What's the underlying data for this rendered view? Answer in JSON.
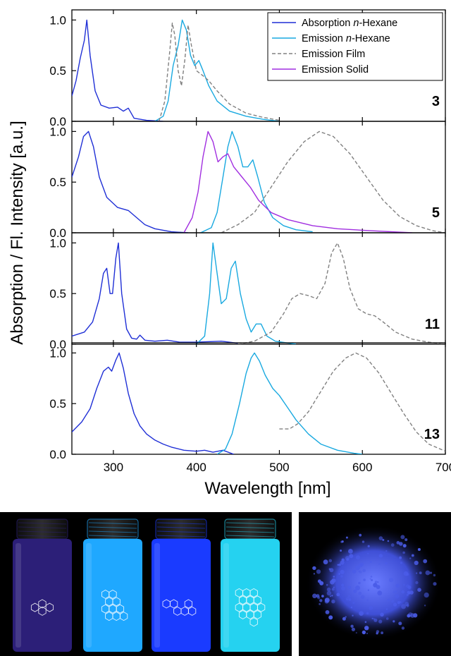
{
  "chart_data": {
    "type": "line",
    "xlabel": "Wavelength [nm]",
    "ylabel": "Absorption / Fl. Intensity [a.u.]",
    "xlim": [
      250,
      700
    ],
    "ylim": [
      0,
      1.1
    ],
    "x_ticks": [
      300,
      400,
      500,
      600,
      700
    ],
    "y_ticks": [
      0.0,
      0.5,
      1.0
    ],
    "y_tick_labels": [
      "0.0",
      "0.5",
      "1.0"
    ],
    "grid": false,
    "legend": {
      "placement": "top-right",
      "entries": [
        {
          "label_pre": "Absorption ",
          "label_ital": "n",
          "label_post": "-Hexane",
          "series": "abs"
        },
        {
          "label_pre": "Emission ",
          "label_ital": "n",
          "label_post": "-Hexane",
          "series": "em_hex"
        },
        {
          "label_pre": "Emission Film",
          "label_ital": "",
          "label_post": "",
          "series": "em_film"
        },
        {
          "label_pre": "Emission Solid",
          "label_ital": "",
          "label_post": "",
          "series": "em_solid"
        }
      ]
    },
    "series_styles": {
      "abs": {
        "color": "#1f2fd6",
        "dash": ""
      },
      "em_hex": {
        "color": "#19a9e0",
        "dash": ""
      },
      "em_film": {
        "color": "#808080",
        "dash": "5,3"
      },
      "em_solid": {
        "color": "#a12ee0",
        "dash": ""
      }
    },
    "panels": [
      {
        "label": "3",
        "series": {
          "abs": [
            [
              250,
              0.25
            ],
            [
              255,
              0.4
            ],
            [
              260,
              0.62
            ],
            [
              265,
              0.8
            ],
            [
              268,
              1.0
            ],
            [
              272,
              0.65
            ],
            [
              278,
              0.3
            ],
            [
              285,
              0.16
            ],
            [
              295,
              0.13
            ],
            [
              305,
              0.14
            ],
            [
              312,
              0.1
            ],
            [
              318,
              0.13
            ],
            [
              325,
              0.03
            ],
            [
              340,
              0.01
            ],
            [
              360,
              0.0
            ]
          ],
          "em_hex": [
            [
              350,
              0.0
            ],
            [
              360,
              0.05
            ],
            [
              366,
              0.2
            ],
            [
              372,
              0.55
            ],
            [
              378,
              0.75
            ],
            [
              383,
              1.0
            ],
            [
              388,
              0.9
            ],
            [
              393,
              0.65
            ],
            [
              398,
              0.55
            ],
            [
              403,
              0.6
            ],
            [
              408,
              0.5
            ],
            [
              415,
              0.35
            ],
            [
              425,
              0.2
            ],
            [
              440,
              0.1
            ],
            [
              460,
              0.05
            ],
            [
              480,
              0.02
            ],
            [
              500,
              0.0
            ]
          ],
          "em_film": [
            [
              355,
              0.0
            ],
            [
              362,
              0.2
            ],
            [
              368,
              0.7
            ],
            [
              371,
              0.97
            ],
            [
              374,
              0.85
            ],
            [
              378,
              0.5
            ],
            [
              382,
              0.35
            ],
            [
              386,
              0.6
            ],
            [
              390,
              0.95
            ],
            [
              394,
              0.75
            ],
            [
              400,
              0.5
            ],
            [
              408,
              0.45
            ],
            [
              415,
              0.4
            ],
            [
              425,
              0.3
            ],
            [
              440,
              0.17
            ],
            [
              460,
              0.08
            ],
            [
              480,
              0.04
            ],
            [
              500,
              0.01
            ]
          ]
        }
      },
      {
        "label": "5",
        "series": {
          "abs": [
            [
              250,
              0.55
            ],
            [
              258,
              0.75
            ],
            [
              264,
              0.95
            ],
            [
              270,
              1.0
            ],
            [
              276,
              0.85
            ],
            [
              283,
              0.55
            ],
            [
              292,
              0.35
            ],
            [
              305,
              0.25
            ],
            [
              318,
              0.22
            ],
            [
              328,
              0.15
            ],
            [
              338,
              0.08
            ],
            [
              350,
              0.04
            ],
            [
              370,
              0.01
            ],
            [
              390,
              0.0
            ]
          ],
          "em_hex": [
            [
              405,
              0.0
            ],
            [
              418,
              0.05
            ],
            [
              425,
              0.2
            ],
            [
              432,
              0.55
            ],
            [
              438,
              0.85
            ],
            [
              443,
              1.0
            ],
            [
              450,
              0.85
            ],
            [
              456,
              0.65
            ],
            [
              462,
              0.65
            ],
            [
              468,
              0.72
            ],
            [
              474,
              0.55
            ],
            [
              482,
              0.3
            ],
            [
              492,
              0.15
            ],
            [
              505,
              0.07
            ],
            [
              520,
              0.03
            ],
            [
              540,
              0.01
            ]
          ],
          "em_film": [
            [
              430,
              0.0
            ],
            [
              450,
              0.08
            ],
            [
              470,
              0.2
            ],
            [
              490,
              0.45
            ],
            [
              510,
              0.7
            ],
            [
              530,
              0.9
            ],
            [
              548,
              1.0
            ],
            [
              565,
              0.95
            ],
            [
              585,
              0.78
            ],
            [
              605,
              0.55
            ],
            [
              625,
              0.32
            ],
            [
              645,
              0.16
            ],
            [
              665,
              0.07
            ],
            [
              685,
              0.02
            ],
            [
              700,
              0.0
            ]
          ],
          "em_solid": [
            [
              385,
              0.0
            ],
            [
              395,
              0.15
            ],
            [
              402,
              0.4
            ],
            [
              408,
              0.75
            ],
            [
              414,
              1.0
            ],
            [
              420,
              0.9
            ],
            [
              426,
              0.7
            ],
            [
              432,
              0.75
            ],
            [
              438,
              0.78
            ],
            [
              445,
              0.65
            ],
            [
              455,
              0.55
            ],
            [
              465,
              0.45
            ],
            [
              475,
              0.32
            ],
            [
              490,
              0.2
            ],
            [
              510,
              0.13
            ],
            [
              540,
              0.07
            ],
            [
              570,
              0.04
            ],
            [
              610,
              0.02
            ],
            [
              660,
              0.0
            ]
          ]
        }
      },
      {
        "label": "11",
        "series": {
          "abs": [
            [
              250,
              0.08
            ],
            [
              265,
              0.12
            ],
            [
              275,
              0.22
            ],
            [
              283,
              0.45
            ],
            [
              288,
              0.7
            ],
            [
              292,
              0.75
            ],
            [
              296,
              0.5
            ],
            [
              299,
              0.5
            ],
            [
              303,
              0.85
            ],
            [
              306,
              1.0
            ],
            [
              310,
              0.5
            ],
            [
              316,
              0.15
            ],
            [
              322,
              0.06
            ],
            [
              328,
              0.05
            ],
            [
              332,
              0.09
            ],
            [
              338,
              0.04
            ],
            [
              350,
              0.03
            ],
            [
              365,
              0.04
            ],
            [
              380,
              0.02
            ],
            [
              400,
              0.02
            ],
            [
              430,
              0.03
            ],
            [
              450,
              0.01
            ]
          ],
          "em_hex": [
            [
              400,
              0.0
            ],
            [
              410,
              0.08
            ],
            [
              416,
              0.5
            ],
            [
              420,
              1.0
            ],
            [
              425,
              0.7
            ],
            [
              430,
              0.4
            ],
            [
              436,
              0.45
            ],
            [
              442,
              0.75
            ],
            [
              447,
              0.82
            ],
            [
              453,
              0.5
            ],
            [
              460,
              0.25
            ],
            [
              466,
              0.12
            ],
            [
              472,
              0.2
            ],
            [
              478,
              0.2
            ],
            [
              485,
              0.08
            ],
            [
              495,
              0.03
            ],
            [
              520,
              0.0
            ]
          ],
          "em_film": [
            [
              450,
              0.0
            ],
            [
              470,
              0.03
            ],
            [
              490,
              0.12
            ],
            [
              505,
              0.3
            ],
            [
              515,
              0.45
            ],
            [
              525,
              0.5
            ],
            [
              535,
              0.48
            ],
            [
              545,
              0.45
            ],
            [
              555,
              0.6
            ],
            [
              563,
              0.9
            ],
            [
              570,
              1.0
            ],
            [
              577,
              0.85
            ],
            [
              585,
              0.55
            ],
            [
              595,
              0.35
            ],
            [
              605,
              0.3
            ],
            [
              615,
              0.28
            ],
            [
              625,
              0.22
            ],
            [
              640,
              0.12
            ],
            [
              660,
              0.05
            ],
            [
              680,
              0.02
            ],
            [
              700,
              0.0
            ]
          ]
        }
      },
      {
        "label": "13",
        "series": {
          "abs": [
            [
              250,
              0.22
            ],
            [
              262,
              0.32
            ],
            [
              272,
              0.45
            ],
            [
              280,
              0.65
            ],
            [
              288,
              0.82
            ],
            [
              294,
              0.86
            ],
            [
              298,
              0.82
            ],
            [
              303,
              0.93
            ],
            [
              307,
              1.0
            ],
            [
              312,
              0.85
            ],
            [
              318,
              0.6
            ],
            [
              325,
              0.4
            ],
            [
              332,
              0.28
            ],
            [
              340,
              0.2
            ],
            [
              350,
              0.14
            ],
            [
              360,
              0.1
            ],
            [
              370,
              0.07
            ],
            [
              385,
              0.04
            ],
            [
              400,
              0.03
            ],
            [
              410,
              0.04
            ],
            [
              420,
              0.02
            ],
            [
              432,
              0.04
            ],
            [
              445,
              0.0
            ]
          ],
          "em_hex": [
            [
              425,
              0.0
            ],
            [
              435,
              0.05
            ],
            [
              443,
              0.2
            ],
            [
              452,
              0.5
            ],
            [
              460,
              0.8
            ],
            [
              466,
              0.95
            ],
            [
              470,
              1.0
            ],
            [
              476,
              0.92
            ],
            [
              483,
              0.78
            ],
            [
              492,
              0.65
            ],
            [
              500,
              0.58
            ],
            [
              510,
              0.46
            ],
            [
              520,
              0.34
            ],
            [
              535,
              0.2
            ],
            [
              550,
              0.1
            ],
            [
              570,
              0.04
            ],
            [
              590,
              0.01
            ],
            [
              600,
              0.0
            ]
          ],
          "em_film": [
            [
              500,
              0.25
            ],
            [
              512,
              0.25
            ],
            [
              522,
              0.3
            ],
            [
              535,
              0.42
            ],
            [
              550,
              0.62
            ],
            [
              565,
              0.82
            ],
            [
              580,
              0.95
            ],
            [
              592,
              1.0
            ],
            [
              605,
              0.95
            ],
            [
              620,
              0.8
            ],
            [
              635,
              0.6
            ],
            [
              650,
              0.4
            ],
            [
              665,
              0.22
            ],
            [
              680,
              0.1
            ],
            [
              700,
              0.03
            ]
          ]
        }
      }
    ]
  },
  "photos": {
    "vials": [
      {
        "name": "vial-3",
        "fill": "#2c1f78",
        "molecule": "chrysene"
      },
      {
        "name": "vial-5",
        "fill": "#1fa8ff",
        "molecule": "branched"
      },
      {
        "name": "vial-11",
        "fill": "#1a3bff",
        "molecule": "linear"
      },
      {
        "name": "vial-13",
        "fill": "#25d2f0",
        "molecule": "large"
      }
    ],
    "powder_color": "#4a5ce8"
  }
}
